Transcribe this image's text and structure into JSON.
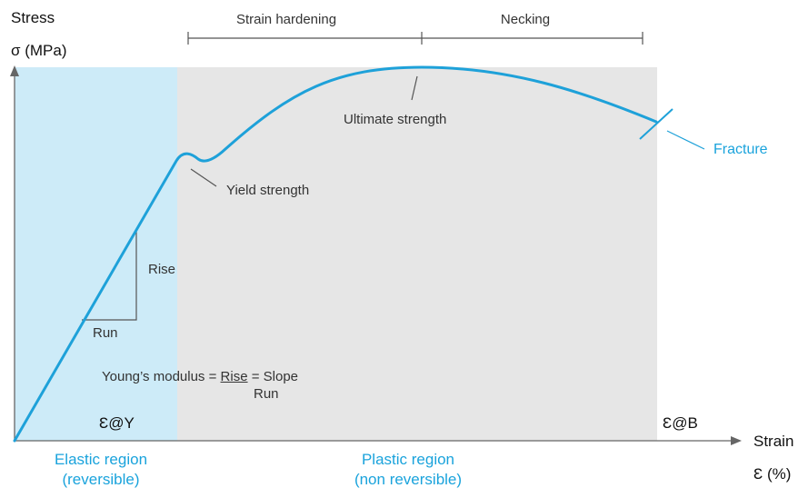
{
  "colors": {
    "curve": "#1ea1d9",
    "elastic_fill": "#cdebf8",
    "plastic_fill": "#e6e6e6",
    "axis": "#666666",
    "line": "#555555"
  },
  "y_axis": {
    "line1": "Stress",
    "line2": "σ (MPa)"
  },
  "x_axis": {
    "line1": "Strain",
    "line2": "Ɛ (%)"
  },
  "phases": {
    "hardening": "Strain hardening",
    "necking": "Necking"
  },
  "points": {
    "ultimate": "Ultimate strength",
    "yield": "Yield strength",
    "fracture": "Fracture"
  },
  "slope": {
    "rise": "Rise",
    "run": "Run"
  },
  "formula": {
    "prefix": "Young’s modulus =",
    "numerator": "Rise",
    "denominator": "Run",
    "suffix": "= Slope"
  },
  "markers": {
    "yield_strain": "Ɛ@Y",
    "break_strain": "Ɛ@B"
  },
  "regions": {
    "elastic_line1": "Elastic region",
    "elastic_line2": "(reversible)",
    "plastic_line1": "Plastic region",
    "plastic_line2": "(non reversible)"
  }
}
